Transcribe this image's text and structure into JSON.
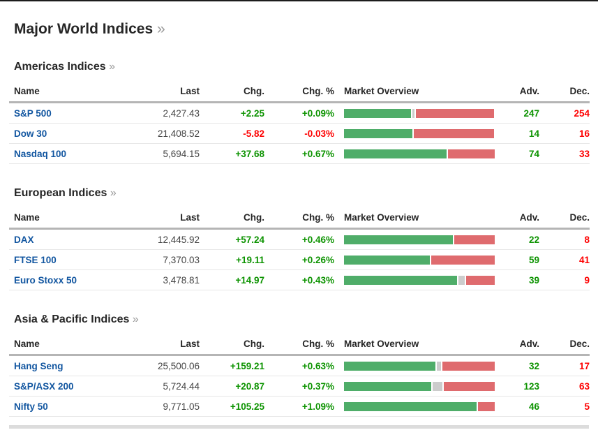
{
  "page": {
    "title": "Major World Indices",
    "chevron": "»"
  },
  "table_headers": {
    "name": "Name",
    "last": "Last",
    "chg": "Chg.",
    "chg_pct": "Chg. %",
    "market": "Market Overview",
    "adv": "Adv.",
    "dec": "Dec."
  },
  "colors": {
    "bar_green": "#4fad69",
    "bar_red": "#df6b6e",
    "bar_gray": "#cccccc",
    "text_green": "#0c9300",
    "text_red": "#fe0000",
    "link_blue": "#1256a0",
    "top_border": "#1c1c1c"
  },
  "sections": [
    {
      "title": "Americas Indices",
      "rows": [
        {
          "name": "S&P 500",
          "last": "2,427.43",
          "chg": "+2.25",
          "chg_pct": "+0.09%",
          "adv": "247",
          "dec": "254",
          "bar": {
            "adv_pct": 44.5,
            "unch_pct": 1.5,
            "dec_pct": 51.5
          }
        },
        {
          "name": "Dow 30",
          "last": "21,408.52",
          "chg": "-5.82",
          "chg_pct": "-0.03%",
          "adv": "14",
          "dec": "16",
          "bar": {
            "adv_pct": 45.5,
            "unch_pct": 0,
            "dec_pct": 53
          }
        },
        {
          "name": "Nasdaq 100",
          "last": "5,694.15",
          "chg": "+37.68",
          "chg_pct": "+0.67%",
          "adv": "74",
          "dec": "33",
          "bar": {
            "adv_pct": 68,
            "unch_pct": 0,
            "dec_pct": 31
          }
        }
      ]
    },
    {
      "title": "European Indices",
      "rows": [
        {
          "name": "DAX",
          "last": "12,445.92",
          "chg": "+57.24",
          "chg_pct": "+0.46%",
          "adv": "22",
          "dec": "8",
          "bar": {
            "adv_pct": 72,
            "unch_pct": 0,
            "dec_pct": 27
          }
        },
        {
          "name": "FTSE 100",
          "last": "7,370.03",
          "chg": "+19.11",
          "chg_pct": "+0.26%",
          "adv": "59",
          "dec": "41",
          "bar": {
            "adv_pct": 57,
            "unch_pct": 0,
            "dec_pct": 42
          }
        },
        {
          "name": "Euro Stoxx 50",
          "last": "3,478.81",
          "chg": "+14.97",
          "chg_pct": "+0.43%",
          "adv": "39",
          "dec": "9",
          "bar": {
            "adv_pct": 75,
            "unch_pct": 4,
            "dec_pct": 19
          }
        }
      ]
    },
    {
      "title": "Asia & Pacific Indices",
      "rows": [
        {
          "name": "Hang Seng",
          "last": "25,500.06",
          "chg": "+159.21",
          "chg_pct": "+0.63%",
          "adv": "32",
          "dec": "17",
          "bar": {
            "adv_pct": 60.5,
            "unch_pct": 3,
            "dec_pct": 34.5
          }
        },
        {
          "name": "S&P/ASX 200",
          "last": "5,724.44",
          "chg": "+20.87",
          "chg_pct": "+0.37%",
          "adv": "123",
          "dec": "63",
          "bar": {
            "adv_pct": 58,
            "unch_pct": 6.5,
            "dec_pct": 33.5
          }
        },
        {
          "name": "Nifty 50",
          "last": "9,771.05",
          "chg": "+105.25",
          "chg_pct": "+1.09%",
          "adv": "46",
          "dec": "5",
          "bar": {
            "adv_pct": 88,
            "unch_pct": 0,
            "dec_pct": 11
          }
        }
      ]
    }
  ]
}
